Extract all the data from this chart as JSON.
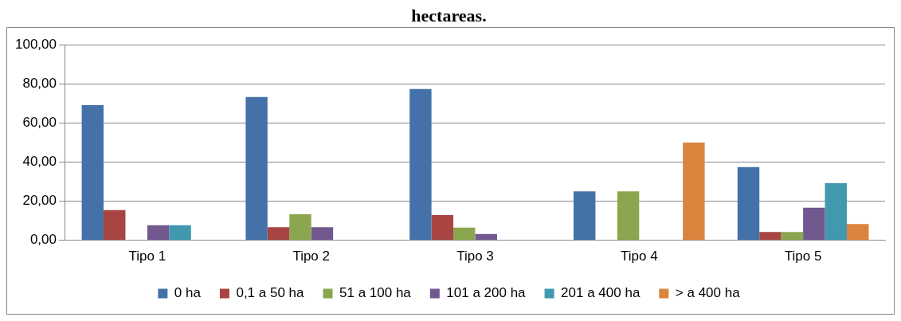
{
  "chart_data": {
    "type": "bar",
    "title": "hectareas.",
    "categories": [
      "Tipo 1",
      "Tipo 2",
      "Tipo 3",
      "Tipo 4",
      "Tipo 5"
    ],
    "series": [
      {
        "name": "0 ha",
        "color": "#4472a8",
        "values": [
          69.2,
          73.3,
          77.4,
          25.0,
          37.5
        ]
      },
      {
        "name": "0,1 a 50 ha",
        "color": "#a84542",
        "values": [
          15.4,
          6.7,
          12.9,
          0,
          4.2
        ]
      },
      {
        "name": "51 a 100 ha",
        "color": "#8aa64e",
        "values": [
          0,
          13.3,
          6.5,
          25.0,
          4.2
        ]
      },
      {
        "name": "101 a 200 ha",
        "color": "#71588f",
        "values": [
          7.7,
          6.7,
          3.2,
          0,
          16.7
        ]
      },
      {
        "name": "201 a 400 ha",
        "color": "#4198af",
        "values": [
          7.7,
          0,
          0,
          0,
          29.2
        ]
      },
      {
        "name": "> a 400 ha",
        "color": "#db843d",
        "values": [
          0,
          0,
          0,
          50.0,
          8.3
        ]
      }
    ],
    "ylim": [
      0,
      100
    ],
    "yticks": [
      {
        "value": 0,
        "label": "0,00"
      },
      {
        "value": 20,
        "label": "20,00"
      },
      {
        "value": 40,
        "label": "40,00"
      },
      {
        "value": 60,
        "label": "60,00"
      },
      {
        "value": 80,
        "label": "80,00"
      },
      {
        "value": 100,
        "label": "100,00"
      }
    ],
    "grid": "y",
    "legend": "bottom"
  }
}
